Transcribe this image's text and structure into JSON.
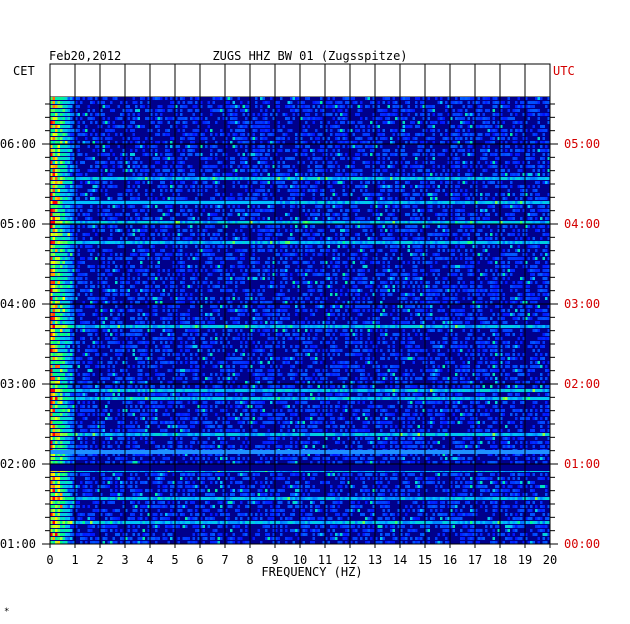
{
  "chart_data": {
    "type": "heatmap",
    "date": "Feb20,2012",
    "title": "ZUGS HHZ BW 01 (Zugsspitze)",
    "left_zone": "CET",
    "right_zone": "UTC",
    "xlabel": "FREQUENCY (HZ)",
    "xlim": [
      0,
      20
    ],
    "x_ticks": [
      "0",
      "1",
      "2",
      "3",
      "4",
      "5",
      "6",
      "7",
      "8",
      "9",
      "10",
      "11",
      "12",
      "13",
      "14",
      "15",
      "16",
      "17",
      "18",
      "19",
      "20"
    ],
    "cet_ticks": [
      "01:00",
      "02:00",
      "03:00",
      "04:00",
      "05:00",
      "06:00"
    ],
    "utc_ticks": [
      "00:00",
      "01:00",
      "02:00",
      "03:00",
      "04:00",
      "05:00"
    ],
    "time_range_utc_hours": [
      0,
      5.6
    ],
    "colormap": [
      "#00008b",
      "#0000ff",
      "#00bfff",
      "#00ff7f",
      "#ffff00",
      "#ff0000"
    ],
    "background_color": "#00008b",
    "grid": true,
    "notable_features": [
      {
        "utc_hour": 4.27,
        "freq_range_hz": [
          0.5,
          9
        ],
        "note": "narrow high-energy band"
      },
      {
        "utc_hour": 1.15,
        "freq_range_hz": [
          0,
          20
        ],
        "note": "broadband line"
      },
      {
        "utc_hour": 0.95,
        "freq_range_hz": [
          0,
          20
        ],
        "note": "data gap"
      }
    ]
  },
  "footer_mark": "*"
}
